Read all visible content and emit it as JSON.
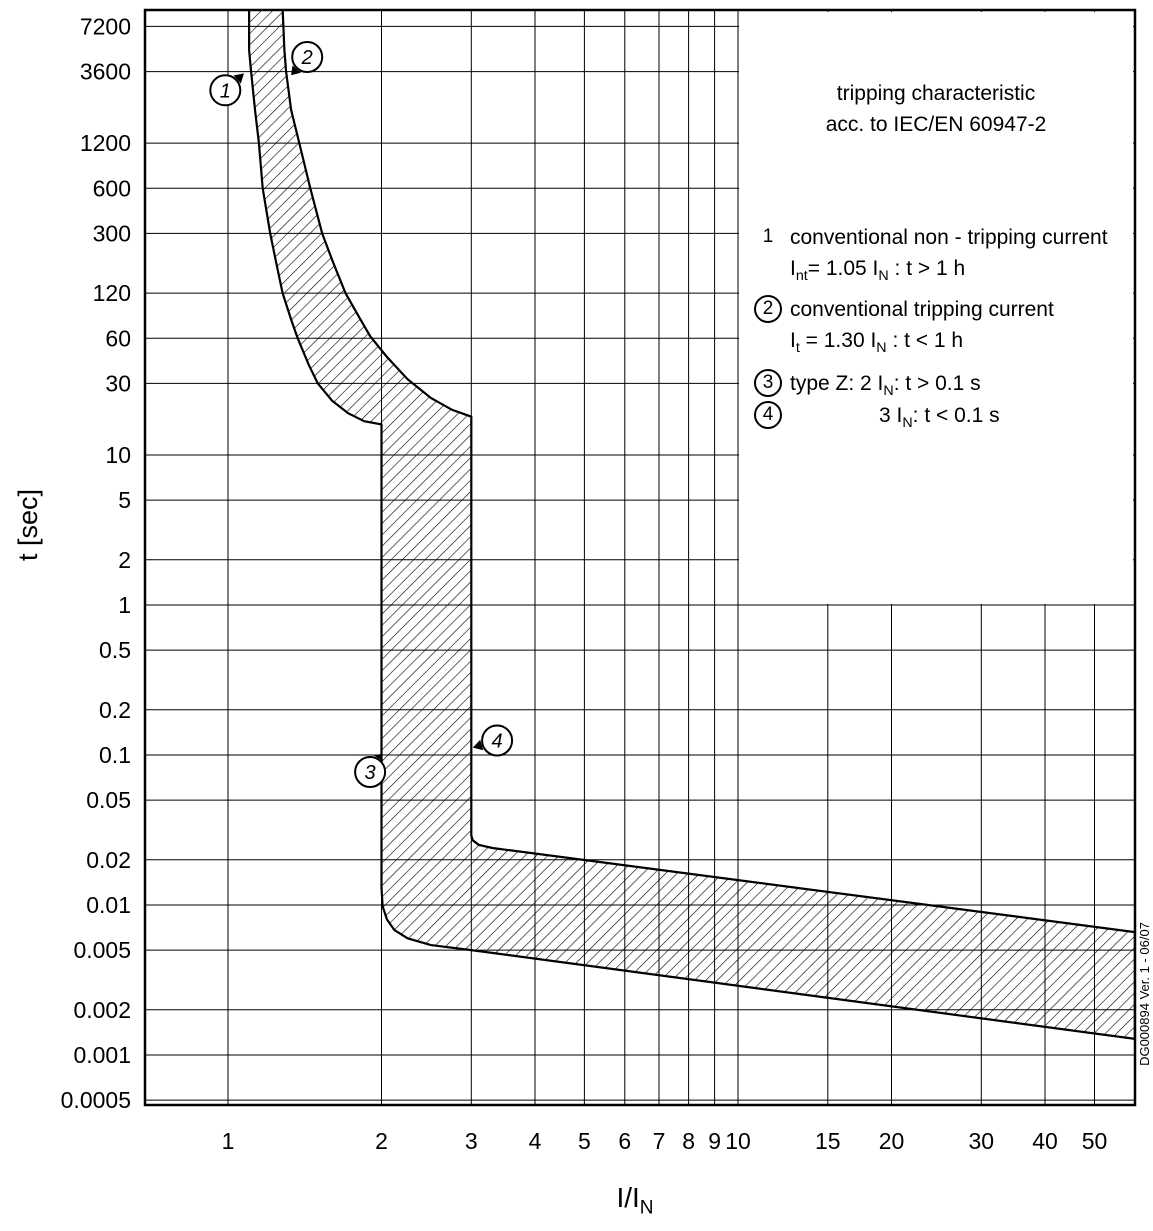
{
  "chart_data": {
    "type": "area",
    "title": "",
    "ylabel": "t [sec]",
    "xlabel_rich": [
      {
        "t": "I/I"
      },
      {
        "s": "N"
      }
    ],
    "x_scale": "log",
    "y_scale": "log",
    "xlim": [
      0.6876,
      60.04
    ],
    "ylim": [
      0.000464,
      9262
    ],
    "grid": true,
    "legend_position": "top-right",
    "x_ticks": [
      "1",
      "2",
      "3",
      "4",
      "5",
      "6",
      "7",
      "8",
      "9",
      "10",
      "15",
      "20",
      "30",
      "40",
      "50"
    ],
    "y_ticks": [
      "7200",
      "3600",
      "1200",
      "600",
      "300",
      "120",
      "60",
      "30",
      "10",
      "5",
      "2",
      "1",
      "0.5",
      "0.2",
      "0.1",
      "0.05",
      "0.02",
      "0.01",
      "0.005",
      "0.002",
      "0.001",
      "0.0005"
    ],
    "band": {
      "name": "tripping tolerance band",
      "lower_boundary": [
        [
          1.1,
          9500
        ],
        [
          1.1,
          5000
        ],
        [
          1.11,
          3600
        ],
        [
          1.13,
          2000
        ],
        [
          1.15,
          1200
        ],
        [
          1.17,
          600
        ],
        [
          1.21,
          300
        ],
        [
          1.24,
          200
        ],
        [
          1.28,
          120
        ],
        [
          1.33,
          80
        ],
        [
          1.37,
          60
        ],
        [
          1.44,
          40
        ],
        [
          1.5,
          30
        ],
        [
          1.6,
          23
        ],
        [
          1.72,
          19
        ],
        [
          1.85,
          16.8
        ],
        [
          2.0,
          16
        ],
        [
          2.0,
          0.013
        ],
        [
          2.01,
          0.0098
        ],
        [
          2.05,
          0.008
        ],
        [
          2.12,
          0.0068
        ],
        [
          2.25,
          0.006
        ],
        [
          2.5,
          0.0054
        ],
        [
          3.0,
          0.005
        ],
        [
          60.0,
          0.00128
        ]
      ],
      "upper_boundary": [
        [
          1.28,
          9500
        ],
        [
          1.29,
          5000
        ],
        [
          1.3,
          3600
        ],
        [
          1.33,
          2000
        ],
        [
          1.38,
          1200
        ],
        [
          1.45,
          600
        ],
        [
          1.53,
          300
        ],
        [
          1.6,
          200
        ],
        [
          1.7,
          120
        ],
        [
          1.8,
          85
        ],
        [
          1.9,
          62
        ],
        [
          2.05,
          45
        ],
        [
          2.25,
          32
        ],
        [
          2.5,
          24
        ],
        [
          2.75,
          20
        ],
        [
          3.0,
          18
        ],
        [
          3.0,
          0.029
        ],
        [
          3.02,
          0.027
        ],
        [
          3.1,
          0.0252
        ],
        [
          3.3,
          0.024
        ],
        [
          60.0,
          0.0066
        ]
      ]
    },
    "markers": [
      {
        "label": "1",
        "x": 0.988,
        "t": 2700,
        "tip_x": 1.075,
        "tip_y": 3500
      },
      {
        "label": "2",
        "x": 1.43,
        "t": 4500,
        "tip_x": 1.33,
        "tip_y": 3400
      },
      {
        "label": "3",
        "x": 1.9,
        "t": 0.077,
        "tip_x": 2.0,
        "tip_y": 0.102
      },
      {
        "label": "4",
        "x": 3.37,
        "t": 0.125,
        "tip_x": 3.02,
        "tip_y": 0.112
      }
    ]
  },
  "legend": {
    "title_line1": "tripping characteristic",
    "title_line2": "acc. to IEC/EN 60947-2",
    "items": [
      {
        "num": "1",
        "circled": false,
        "line1": [
          {
            "t": "conventional non - tripping current"
          }
        ],
        "line2": [
          {
            "t": "I"
          },
          {
            "s": "nt"
          },
          {
            "t": "= 1.05 I"
          },
          {
            "s": "N"
          },
          {
            "t": " : t > 1 h"
          }
        ]
      },
      {
        "num": "2",
        "circled": true,
        "line1": [
          {
            "t": "conventional tripping current"
          }
        ],
        "line2": [
          {
            "t": "I"
          },
          {
            "s": "t"
          },
          {
            "t": " = 1.30 I"
          },
          {
            "s": "N"
          },
          {
            "t": " : t < 1 h"
          }
        ]
      },
      {
        "num": "3",
        "circled": true,
        "line1": [
          {
            "t": "type Z:  2 I"
          },
          {
            "s": "N"
          },
          {
            "t": ": t > 0.1 s"
          }
        ]
      },
      {
        "num": "4",
        "circled": true,
        "line1": [
          {
            "t": "3 I"
          },
          {
            "s": "N"
          },
          {
            "t": ": t < 0.1 s"
          }
        ]
      }
    ]
  },
  "watermark": "DG000894 Ver. 1 - 06/07",
  "colors": {
    "line": "#000000",
    "background": "#ffffff"
  }
}
